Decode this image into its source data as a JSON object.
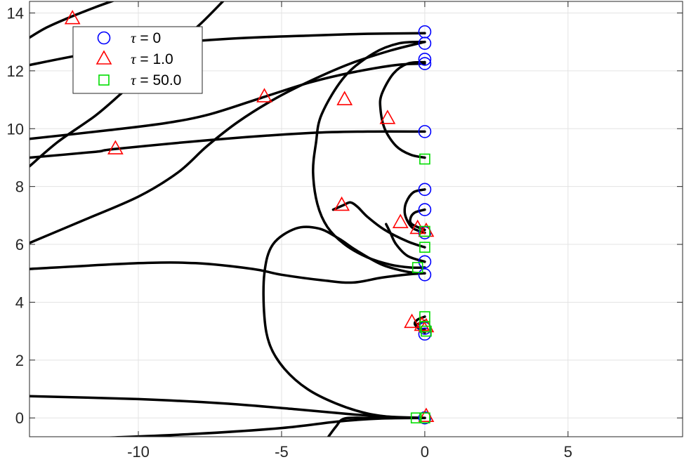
{
  "chart_data": {
    "type": "line",
    "title": "",
    "xlabel": "",
    "ylabel": "",
    "xlim": [
      -13.8,
      9.0
    ],
    "ylim": [
      -0.65,
      14.4
    ],
    "xticks": [
      -10,
      -5,
      0,
      5
    ],
    "yticks": [
      0,
      2,
      4,
      6,
      8,
      10,
      12,
      14
    ],
    "xtick_labels": [
      "-10",
      "-5",
      "0",
      "5"
    ],
    "ytick_labels": [
      "0",
      "2",
      "4",
      "6",
      "8",
      "10",
      "12",
      "14"
    ],
    "grid": true,
    "legend": {
      "placement": "top-left",
      "entries": [
        {
          "symbol": "τ",
          "text": " = 0",
          "marker": "circle",
          "color": "#0000ff"
        },
        {
          "symbol": "τ",
          "text": " = 1.0",
          "marker": "triangle",
          "color": "#ff0000"
        },
        {
          "symbol": "τ",
          "text": " = 50.0",
          "marker": "square",
          "color": "#00dd00"
        }
      ]
    },
    "curve_color": "#000000",
    "curves": [
      {
        "points": [
          [
            -13.8,
            13.15
          ],
          [
            -13.2,
            13.5
          ],
          [
            -12.4,
            13.85
          ],
          [
            -11.5,
            14.2
          ],
          [
            -10.8,
            14.45
          ]
        ]
      },
      {
        "points": [
          [
            -13.8,
            8.7
          ],
          [
            -12.8,
            9.55
          ],
          [
            -11.5,
            10.45
          ],
          [
            -10.5,
            11.3
          ],
          [
            -9.5,
            12.15
          ],
          [
            -8.6,
            12.95
          ],
          [
            -7.8,
            13.65
          ],
          [
            -7.0,
            14.45
          ]
        ]
      },
      {
        "points": [
          [
            -13.8,
            12.2
          ],
          [
            -12.0,
            12.55
          ],
          [
            -10.0,
            12.85
          ],
          [
            -7.0,
            13.1
          ],
          [
            -4.0,
            13.22
          ],
          [
            -2.0,
            13.28
          ],
          [
            0.0,
            13.3
          ]
        ]
      },
      {
        "points": [
          [
            -13.8,
            9.65
          ],
          [
            -11.0,
            9.95
          ],
          [
            -9.0,
            10.2
          ],
          [
            -7.5,
            10.5
          ],
          [
            -5.6,
            11.1
          ],
          [
            -4.0,
            11.6
          ],
          [
            -2.5,
            11.95
          ],
          [
            -1.0,
            12.2
          ],
          [
            0.0,
            12.25
          ]
        ]
      },
      {
        "points": [
          [
            -13.8,
            9.0
          ],
          [
            -11.5,
            9.2
          ],
          [
            -10.8,
            9.3
          ],
          [
            -7.0,
            9.65
          ],
          [
            -4.0,
            9.85
          ],
          [
            -2.0,
            9.9
          ],
          [
            0.0,
            9.9
          ]
        ]
      },
      {
        "points": [
          [
            -13.8,
            6.05
          ],
          [
            -12.0,
            6.8
          ],
          [
            -10.0,
            7.65
          ],
          [
            -8.6,
            8.5
          ],
          [
            -7.6,
            9.4
          ],
          [
            -6.5,
            10.25
          ],
          [
            -5.2,
            11.05
          ],
          [
            -4.0,
            11.65
          ],
          [
            -2.6,
            12.25
          ],
          [
            -1.2,
            12.7
          ],
          [
            0.0,
            13.0
          ]
        ]
      },
      {
        "points": [
          [
            -13.8,
            5.15
          ],
          [
            -10.0,
            5.35
          ],
          [
            -8.0,
            5.35
          ],
          [
            -6.0,
            5.15
          ],
          [
            -5.0,
            4.95
          ],
          [
            -3.5,
            4.75
          ],
          [
            -2.5,
            4.68
          ],
          [
            -1.5,
            4.85
          ],
          [
            -0.5,
            4.97
          ],
          [
            0.0,
            5.0
          ]
        ]
      },
      {
        "points": [
          [
            0.0,
            13.0
          ],
          [
            -0.9,
            12.95
          ],
          [
            -1.8,
            12.6
          ],
          [
            -2.8,
            11.8
          ],
          [
            -3.6,
            10.5
          ],
          [
            -3.8,
            9.5
          ],
          [
            -3.9,
            8.5
          ],
          [
            -3.75,
            7.4
          ],
          [
            -3.4,
            6.6
          ],
          [
            -2.8,
            6.0
          ],
          [
            -2.0,
            5.55
          ],
          [
            -1.2,
            5.3
          ],
          [
            -0.5,
            5.2
          ],
          [
            0.0,
            5.2
          ]
        ]
      },
      {
        "points": [
          [
            0.0,
            12.3
          ],
          [
            -0.6,
            12.25
          ],
          [
            -1.1,
            11.9
          ],
          [
            -1.5,
            11.2
          ],
          [
            -1.55,
            10.7
          ],
          [
            -1.4,
            10.0
          ],
          [
            -1.0,
            9.4
          ],
          [
            -0.5,
            9.1
          ],
          [
            0.0,
            9.0
          ]
        ]
      },
      {
        "points": [
          [
            0.0,
            5.0
          ],
          [
            -0.6,
            5.05
          ],
          [
            -1.5,
            5.3
          ],
          [
            -2.4,
            5.8
          ],
          [
            -3.0,
            6.2
          ],
          [
            -3.7,
            6.55
          ],
          [
            -4.5,
            6.55
          ],
          [
            -5.3,
            6.0
          ],
          [
            -5.6,
            5.0
          ],
          [
            -5.6,
            3.5
          ],
          [
            -5.4,
            2.5
          ],
          [
            -4.9,
            1.7
          ],
          [
            -4.1,
            1.0
          ],
          [
            -3.1,
            0.5
          ],
          [
            -2.0,
            0.15
          ],
          [
            -1.0,
            0.02
          ],
          [
            0.0,
            0.0
          ]
        ]
      },
      {
        "points": [
          [
            0.0,
            7.9
          ],
          [
            -0.4,
            7.8
          ],
          [
            -0.65,
            7.45
          ],
          [
            -0.7,
            7.1
          ],
          [
            -0.6,
            6.8
          ],
          [
            -0.4,
            6.55
          ],
          [
            0.0,
            6.4
          ]
        ]
      },
      {
        "points": [
          [
            0.0,
            7.2
          ],
          [
            -0.35,
            7.1
          ],
          [
            -0.5,
            6.9
          ],
          [
            -0.45,
            6.7
          ],
          [
            0.0,
            6.5
          ]
        ]
      },
      {
        "points": [
          [
            0.0,
            5.9
          ],
          [
            -0.6,
            6.1
          ],
          [
            -1.4,
            6.5
          ],
          [
            -2.0,
            6.95
          ],
          [
            -2.35,
            7.3
          ],
          [
            -2.6,
            7.45
          ],
          [
            -2.85,
            7.35
          ],
          [
            -3.2,
            7.2
          ]
        ]
      },
      {
        "points": [
          [
            0.0,
            5.4
          ],
          [
            -0.6,
            5.6
          ],
          [
            -1.0,
            6.0
          ],
          [
            -1.2,
            6.4
          ],
          [
            -1.35,
            6.7
          ]
        ]
      },
      {
        "points": [
          [
            0.0,
            3.5
          ],
          [
            -0.25,
            3.4
          ],
          [
            -0.35,
            3.25
          ],
          [
            -0.2,
            3.1
          ],
          [
            0.0,
            3.05
          ]
        ]
      },
      {
        "points": [
          [
            0.0,
            2.95
          ],
          [
            -0.15,
            3.05
          ],
          [
            -0.3,
            3.2
          ],
          [
            -0.1,
            3.3
          ],
          [
            0.0,
            3.35
          ]
        ]
      },
      {
        "points": [
          [
            -13.8,
            0.75
          ],
          [
            -10.0,
            0.65
          ],
          [
            -7.0,
            0.5
          ],
          [
            -4.5,
            0.3
          ],
          [
            -2.5,
            0.12
          ],
          [
            -1.0,
            0.03
          ],
          [
            0.0,
            0.0
          ]
        ]
      },
      {
        "points": [
          [
            -11.5,
            -0.7
          ],
          [
            -8.0,
            -0.55
          ],
          [
            -5.0,
            -0.35
          ],
          [
            -3.0,
            -0.12
          ],
          [
            -1.5,
            -0.02
          ],
          [
            0.0,
            0.0
          ]
        ]
      },
      {
        "points": [
          [
            -3.4,
            -0.7
          ],
          [
            -3.1,
            -0.3
          ],
          [
            -2.8,
            -0.02
          ],
          [
            -2.0,
            0.0
          ],
          [
            -0.5,
            0.0
          ],
          [
            0.0,
            0.0
          ]
        ]
      }
    ],
    "series": [
      {
        "name": "τ = 0",
        "marker": "circle",
        "color": "#0000ff",
        "points": [
          [
            0.0,
            13.35
          ],
          [
            0.0,
            12.95
          ],
          [
            0.0,
            12.4
          ],
          [
            0.0,
            12.25
          ],
          [
            0.0,
            9.9
          ],
          [
            0.0,
            7.9
          ],
          [
            0.0,
            7.2
          ],
          [
            0.0,
            6.4
          ],
          [
            0.0,
            5.4
          ],
          [
            0.0,
            4.95
          ],
          [
            0.0,
            3.1
          ],
          [
            0.0,
            2.9
          ],
          [
            0.0,
            0.0
          ]
        ]
      },
      {
        "name": "τ = 1.0",
        "marker": "triangle",
        "color": "#ff0000",
        "points": [
          [
            -12.3,
            13.8
          ],
          [
            -10.8,
            9.3
          ],
          [
            -5.6,
            11.1
          ],
          [
            -2.8,
            11.0
          ],
          [
            -1.3,
            10.35
          ],
          [
            -2.9,
            7.35
          ],
          [
            -0.85,
            6.75
          ],
          [
            -0.25,
            6.55
          ],
          [
            0.05,
            6.45
          ],
          [
            -0.45,
            3.3
          ],
          [
            -0.1,
            3.2
          ],
          [
            0.05,
            3.15
          ],
          [
            0.05,
            0.05
          ]
        ]
      },
      {
        "name": "τ = 50.0",
        "marker": "square",
        "color": "#00dd00",
        "points": [
          [
            0.0,
            8.95
          ],
          [
            0.0,
            6.45
          ],
          [
            0.0,
            5.9
          ],
          [
            -0.25,
            5.2
          ],
          [
            0.0,
            3.5
          ],
          [
            0.0,
            3.15
          ],
          [
            0.05,
            3.0
          ],
          [
            -0.3,
            0.0
          ],
          [
            0.0,
            0.0
          ]
        ]
      }
    ]
  }
}
